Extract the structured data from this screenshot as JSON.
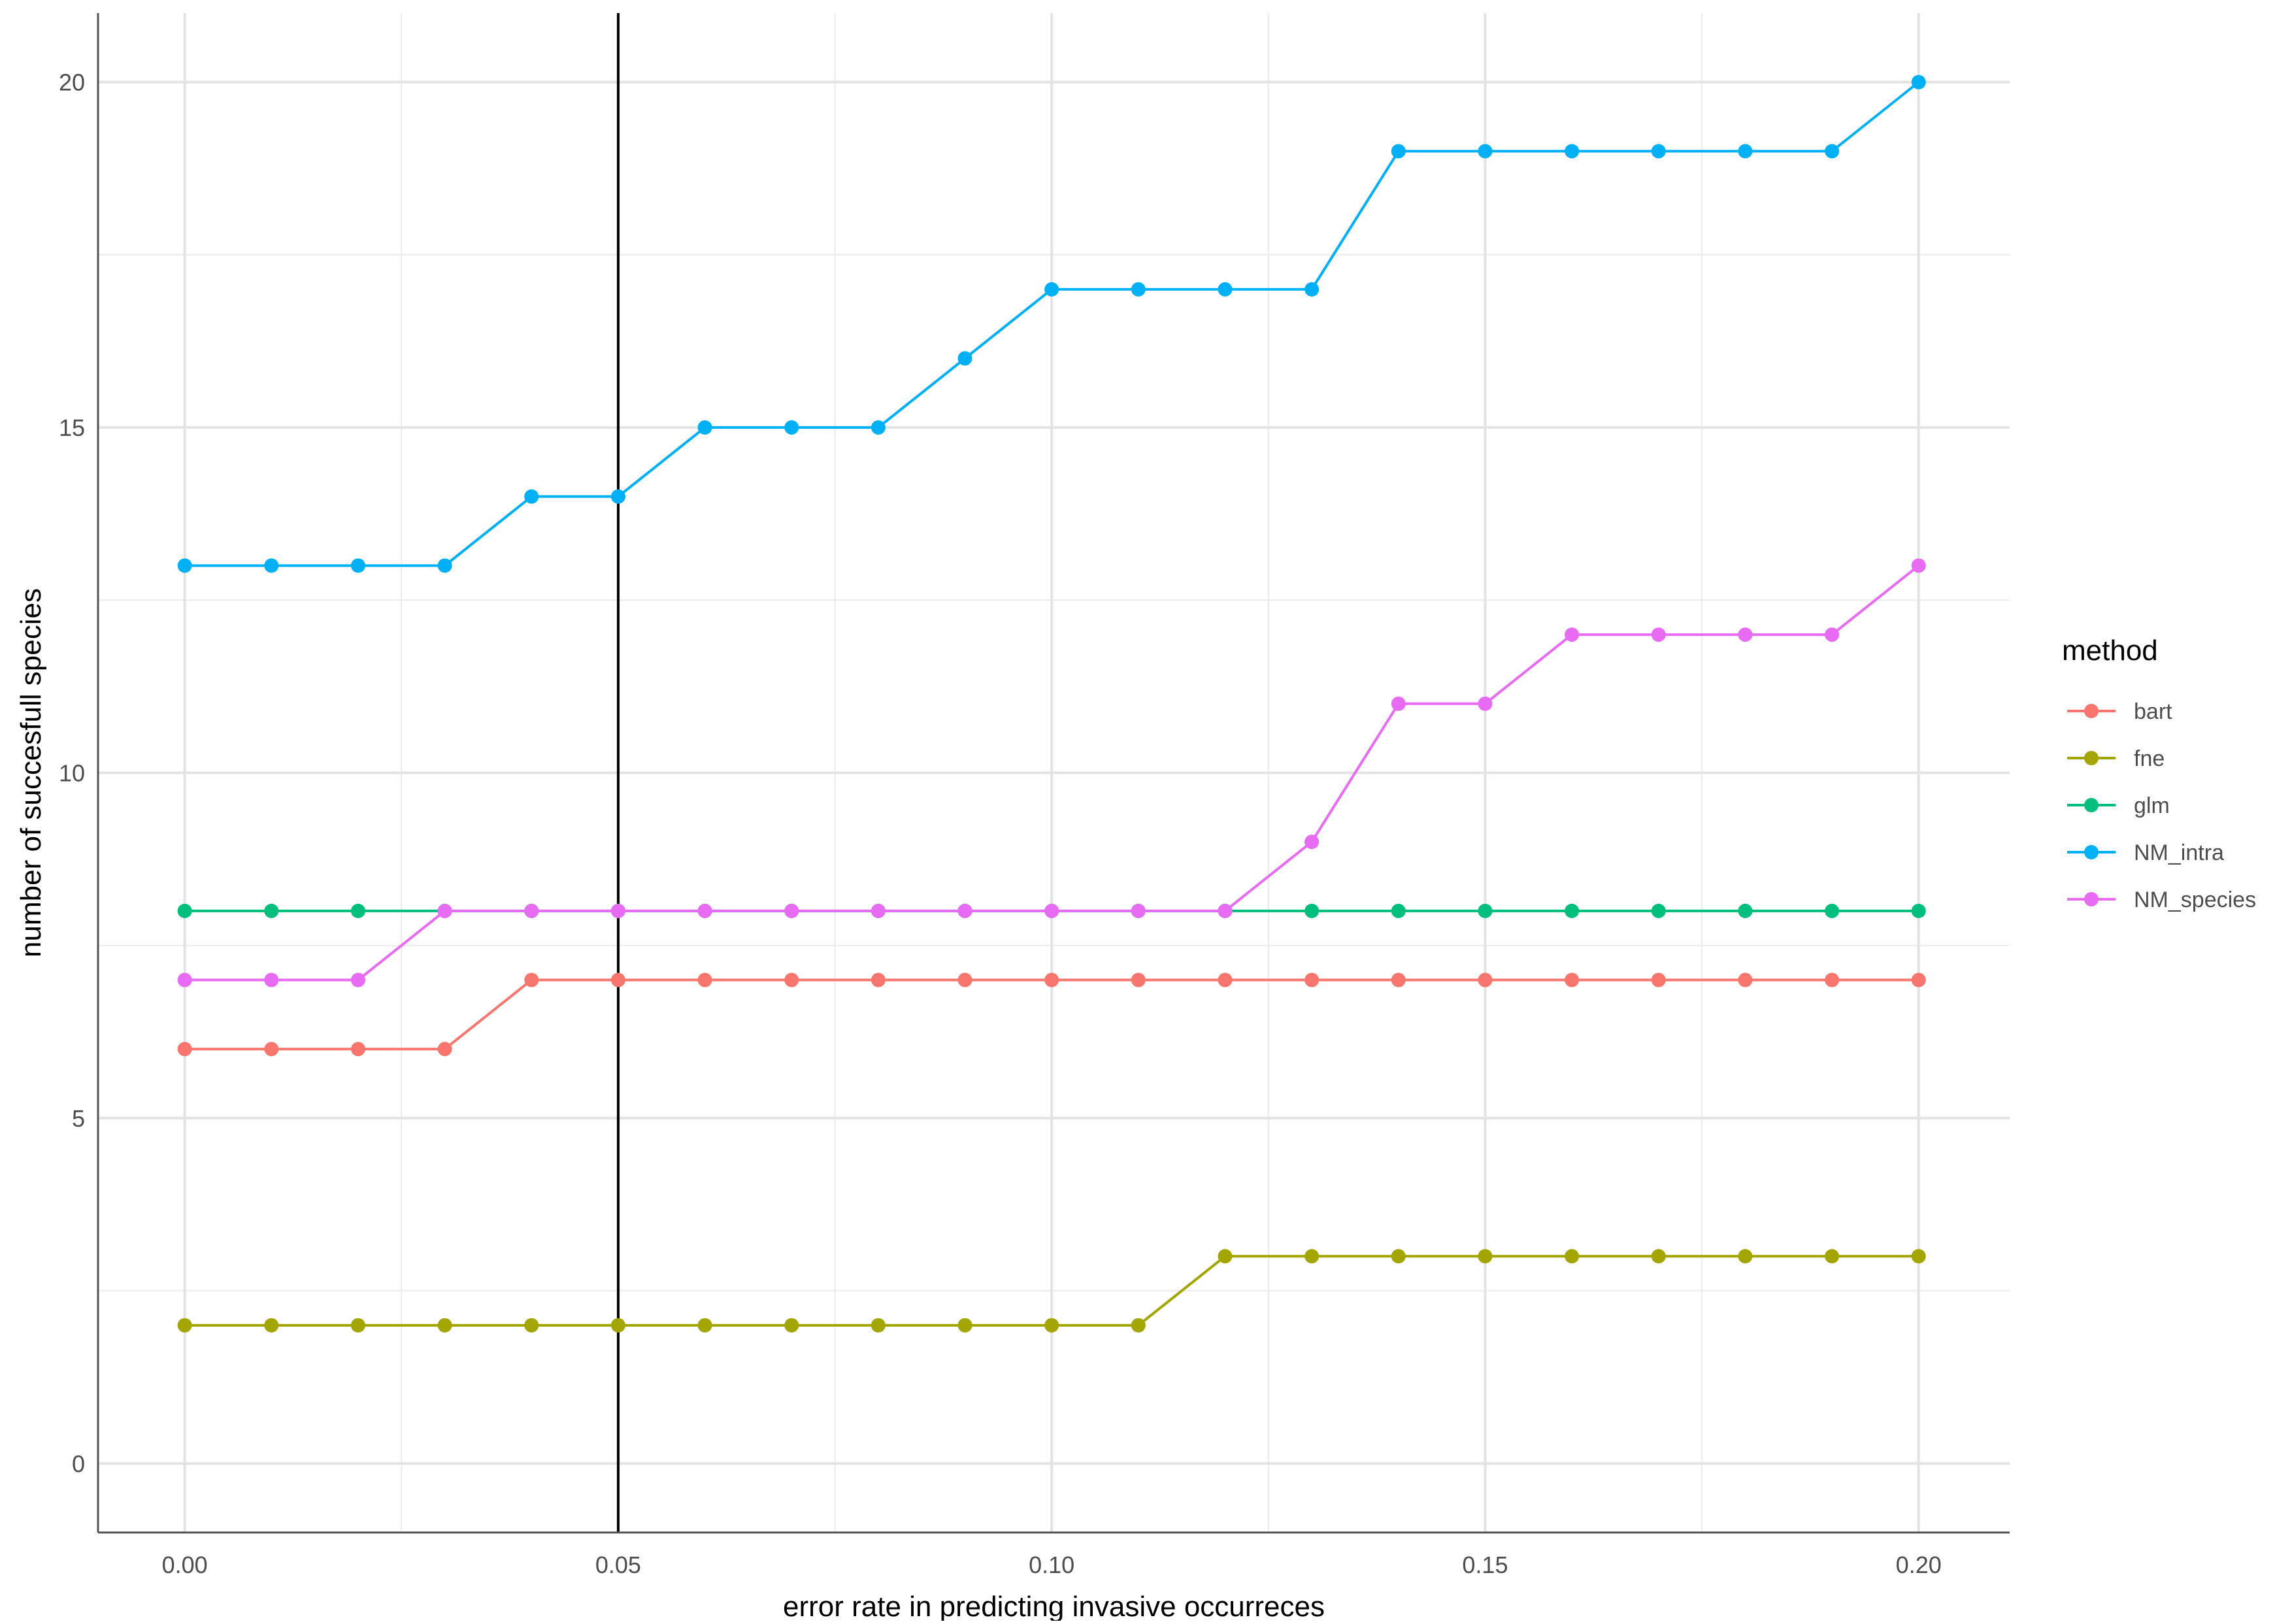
{
  "chart_data": {
    "type": "line",
    "title": "",
    "xlabel": "error rate in predicting invasive occurreces",
    "ylabel": "number of succesfull species",
    "xlim": [
      -0.01,
      0.2105
    ],
    "ylim": [
      -1,
      21
    ],
    "x_ticks": [
      0.0,
      0.05,
      0.1,
      0.15,
      0.2
    ],
    "x_tick_labels": [
      "0.00",
      "0.05",
      "0.10",
      "0.15",
      "0.20"
    ],
    "x_minor_ticks": [
      0.025,
      0.075,
      0.125,
      0.175
    ],
    "y_ticks": [
      0,
      5,
      10,
      15,
      20
    ],
    "y_tick_labels": [
      "0",
      "5",
      "10",
      "15",
      "20"
    ],
    "y_minor_ticks": [
      2.5,
      7.5,
      12.5,
      17.5
    ],
    "grid": true,
    "vline": 0.05,
    "legend": {
      "title": "method",
      "position": "right"
    },
    "x": [
      0.0,
      0.01,
      0.02,
      0.03,
      0.04,
      0.05,
      0.06,
      0.07,
      0.08,
      0.09,
      0.1,
      0.11,
      0.12,
      0.13,
      0.14,
      0.15,
      0.16,
      0.17,
      0.18,
      0.19,
      0.2
    ],
    "series": [
      {
        "name": "bart",
        "color": "#F8766D",
        "values": [
          6,
          6,
          6,
          6,
          7,
          7,
          7,
          7,
          7,
          7,
          7,
          7,
          7,
          7,
          7,
          7,
          7,
          7,
          7,
          7,
          7
        ]
      },
      {
        "name": "fne",
        "color": "#A3A500",
        "values": [
          2,
          2,
          2,
          2,
          2,
          2,
          2,
          2,
          2,
          2,
          2,
          2,
          3,
          3,
          3,
          3,
          3,
          3,
          3,
          3,
          3
        ]
      },
      {
        "name": "glm",
        "color": "#00BF7D",
        "values": [
          8,
          8,
          8,
          8,
          8,
          8,
          8,
          8,
          8,
          8,
          8,
          8,
          8,
          8,
          8,
          8,
          8,
          8,
          8,
          8,
          8
        ]
      },
      {
        "name": "NM_intra",
        "color": "#00B0F6",
        "values": [
          13,
          13,
          13,
          13,
          14,
          14,
          15,
          15,
          15,
          16,
          17,
          17,
          17,
          17,
          19,
          19,
          19,
          19,
          19,
          19,
          20
        ]
      },
      {
        "name": "NM_species",
        "color": "#E76BF3",
        "values": [
          7,
          7,
          7,
          8,
          8,
          8,
          8,
          8,
          8,
          8,
          8,
          8,
          8,
          9,
          11,
          11,
          12,
          12,
          12,
          12,
          13
        ]
      }
    ]
  }
}
